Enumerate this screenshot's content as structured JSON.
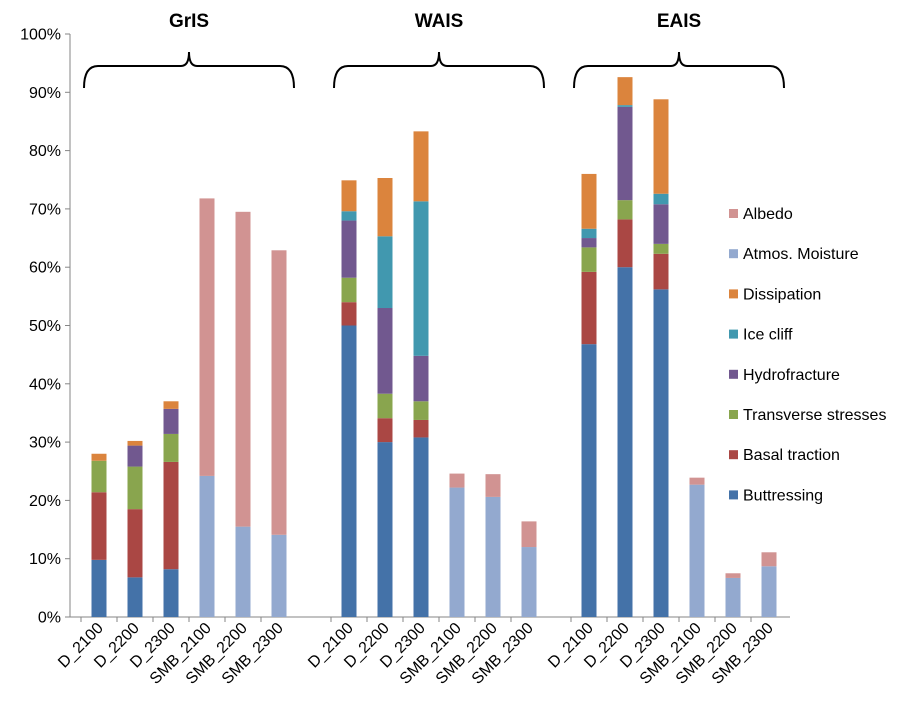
{
  "chart_data": {
    "type": "bar",
    "stacked": true,
    "grid": false,
    "legend_position": "right",
    "ylim": [
      0,
      100
    ],
    "y_ticks": [
      "0%",
      "10%",
      "20%",
      "30%",
      "40%",
      "50%",
      "60%",
      "70%",
      "80%",
      "90%",
      "100%"
    ],
    "groups": [
      "GrIS",
      "WAIS",
      "EAIS"
    ],
    "categories": [
      "D_2100",
      "D_2200",
      "D_2300",
      "SMB_2100",
      "SMB_2200",
      "SMB_2300"
    ],
    "series": [
      {
        "name": "Buttressing",
        "color": "#4472A8",
        "values": [
          [
            9.8,
            6.8,
            8.2,
            0,
            0,
            0
          ],
          [
            50,
            30,
            30.8,
            0,
            0,
            0
          ],
          [
            46.8,
            60,
            56.2,
            0,
            0,
            0
          ]
        ]
      },
      {
        "name": "Basal traction",
        "color": "#AA4744",
        "values": [
          [
            11.6,
            11.7,
            18.4,
            0,
            0,
            0
          ],
          [
            4,
            4.1,
            3,
            0,
            0,
            0
          ],
          [
            12.4,
            8.2,
            6.1,
            0,
            0,
            0
          ]
        ]
      },
      {
        "name": "Transverse stresses",
        "color": "#89A54E",
        "values": [
          [
            5.4,
            7.3,
            4.8,
            0,
            0,
            0
          ],
          [
            4.2,
            4.2,
            3.2,
            0,
            0,
            0
          ],
          [
            4.2,
            3.3,
            1.7,
            0,
            0,
            0
          ]
        ]
      },
      {
        "name": "Hydrofracture",
        "color": "#71588F",
        "values": [
          [
            0,
            3.6,
            4.3,
            0,
            0,
            0
          ],
          [
            9.8,
            14.7,
            7.8,
            0,
            0,
            0
          ],
          [
            1.6,
            16,
            6.8,
            0,
            0,
            0
          ]
        ]
      },
      {
        "name": "Ice cliff",
        "color": "#4198AF",
        "values": [
          [
            0,
            0,
            0,
            0,
            0,
            0
          ],
          [
            1.6,
            12.3,
            26.5,
            0,
            0,
            0
          ],
          [
            1.6,
            0.3,
            1.8,
            0,
            0,
            0
          ]
        ]
      },
      {
        "name": "Dissipation",
        "color": "#DB843D",
        "values": [
          [
            1.2,
            0.8,
            1.3,
            0,
            0,
            0
          ],
          [
            5.3,
            10,
            12,
            0,
            0,
            0
          ],
          [
            9.4,
            4.8,
            16.2,
            0,
            0,
            0
          ]
        ]
      },
      {
        "name": "Atmos. Moisture",
        "color": "#93A9CF",
        "values": [
          [
            0,
            0,
            0,
            24.2,
            15.5,
            14.1
          ],
          [
            0,
            0,
            0,
            22.2,
            20.6,
            12
          ],
          [
            0,
            0,
            0,
            22.7,
            6.7,
            8.7
          ]
        ]
      },
      {
        "name": "Albedo",
        "color": "#D19392",
        "values": [
          [
            0,
            0,
            0,
            47.6,
            54,
            48.8
          ],
          [
            0,
            0,
            0,
            2.4,
            3.9,
            4.4
          ],
          [
            0,
            0,
            0,
            1.2,
            0.8,
            2.4
          ]
        ]
      }
    ],
    "legend_order": [
      "Albedo",
      "Atmos. Moisture",
      "Dissipation",
      "Ice cliff",
      "Hydrofracture",
      "Transverse stresses",
      "Basal traction",
      "Buttressing"
    ]
  }
}
